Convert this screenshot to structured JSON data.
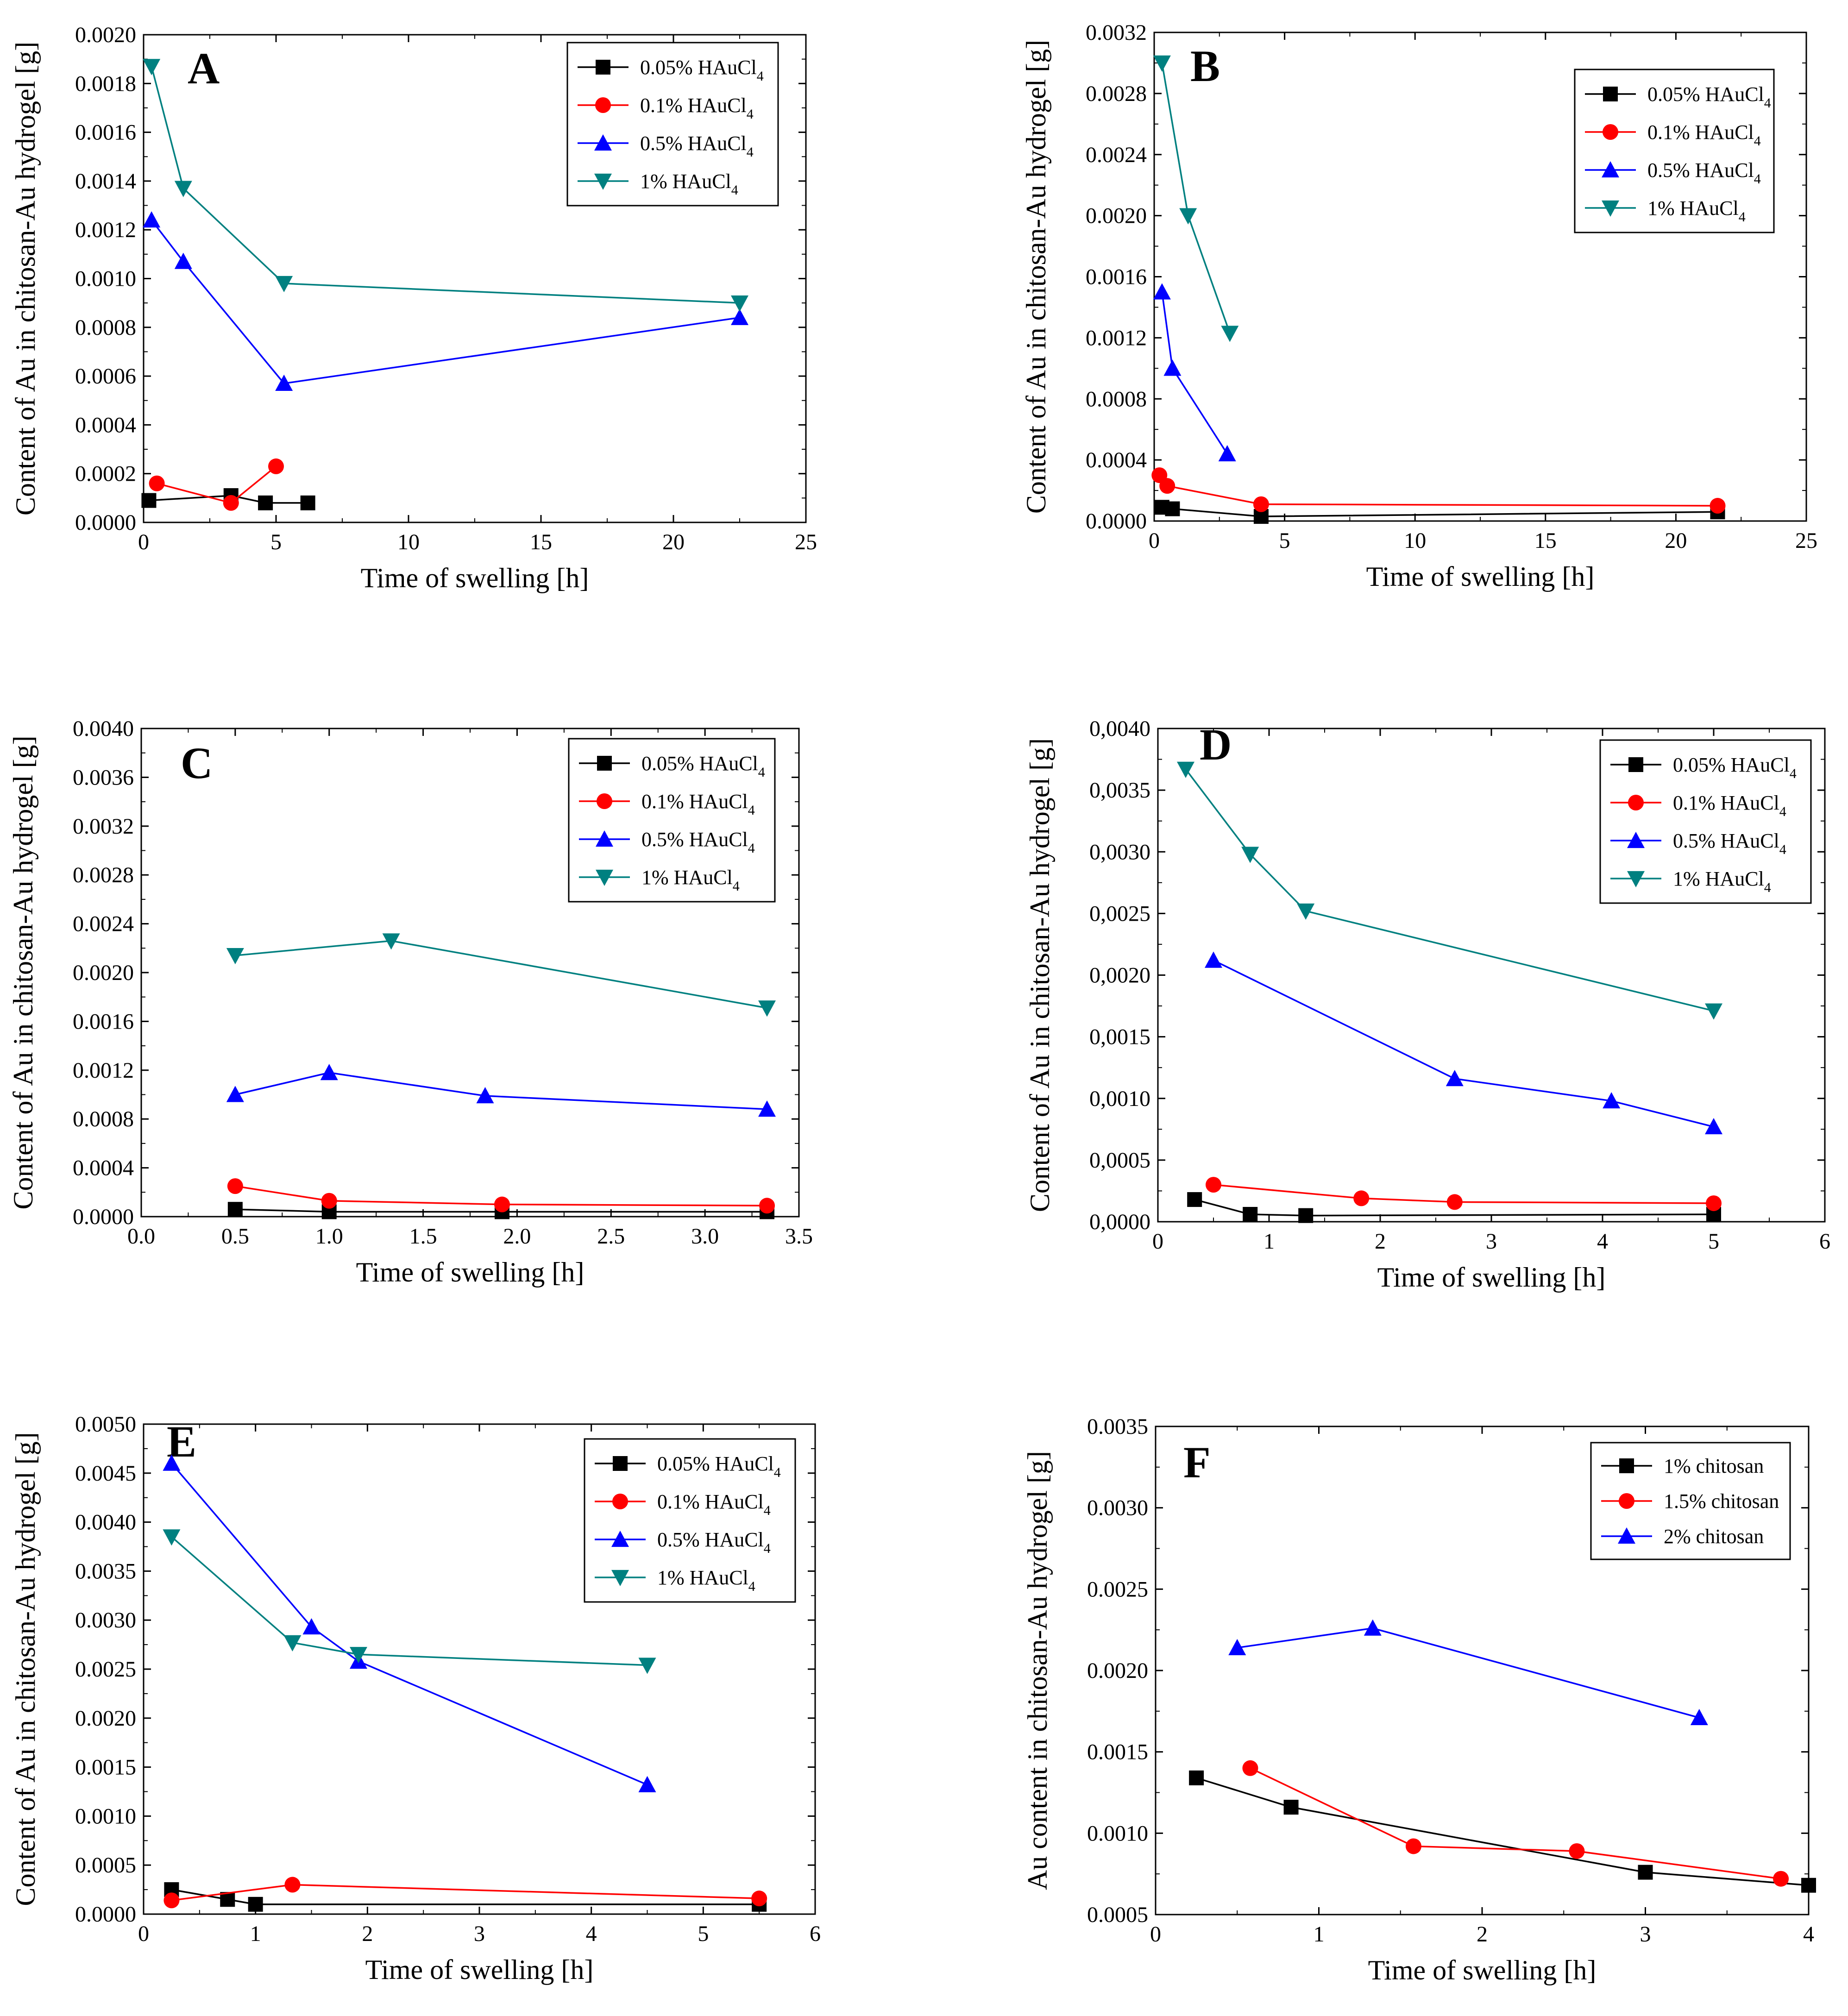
{
  "colors": {
    "black": "#000000",
    "red": "#ff0000",
    "blue": "#0000ff",
    "teal": "#008080"
  },
  "chart_data": [
    {
      "panel": "A",
      "type": "line",
      "xlabel": "Time of swelling [h]",
      "ylabel": "Content of Au in chitosan-Au hydrogel [g]",
      "xlim": [
        0,
        25
      ],
      "ylim": [
        0,
        0.002
      ],
      "xticks": [
        "0",
        "5",
        "10",
        "15",
        "20",
        "25"
      ],
      "yticks": [
        "0.0000",
        "0.0002",
        "0.0004",
        "0.0006",
        "0.0008",
        "0.0010",
        "0.0012",
        "0.0014",
        "0.0016",
        "0.0018",
        "0.0020"
      ],
      "legend_position": "top-right",
      "series": [
        {
          "name": "0.05% HAuCl",
          "sub": "4",
          "color": "#000000",
          "marker": "square",
          "x": [
            0.2,
            3.3,
            4.6,
            6.2
          ],
          "y": [
            9e-05,
            0.00011,
            8e-05,
            8e-05
          ]
        },
        {
          "name": "0.1% HAuCl",
          "sub": "4",
          "color": "#ff0000",
          "marker": "circle",
          "x": [
            0.5,
            3.3,
            5.0
          ],
          "y": [
            0.00016,
            8e-05,
            0.00023
          ]
        },
        {
          "name": "0.5% HAuCl",
          "sub": "4",
          "color": "#0000ff",
          "marker": "triangle-up",
          "x": [
            0.3,
            1.5,
            5.3,
            22.5
          ],
          "y": [
            0.00124,
            0.00107,
            0.00057,
            0.00084
          ]
        },
        {
          "name": "1% HAuCl",
          "sub": "4",
          "color": "#008080",
          "marker": "triangle-down",
          "x": [
            0.3,
            1.5,
            5.3,
            22.5
          ],
          "y": [
            0.00187,
            0.00137,
            0.00098,
            0.0009
          ]
        }
      ]
    },
    {
      "panel": "B",
      "type": "line",
      "xlabel": "Time of swelling [h]",
      "ylabel": "Content of Au in chitosan-Au hydrogel [g]",
      "xlim": [
        0,
        25
      ],
      "ylim": [
        0,
        0.0032
      ],
      "xticks": [
        "0",
        "5",
        "10",
        "15",
        "20",
        "25"
      ],
      "yticks": [
        "0.0000",
        "0.0004",
        "0.0008",
        "0.0012",
        "0.0016",
        "0.0020",
        "0.0024",
        "0.0028",
        "0.0032"
      ],
      "legend_position": "top-right",
      "series": [
        {
          "name": "0.05% HAuCl",
          "sub": "4",
          "color": "#000000",
          "marker": "square",
          "x": [
            0.3,
            0.7,
            4.1,
            21.6
          ],
          "y": [
            9e-05,
            8e-05,
            3e-05,
            6e-05
          ]
        },
        {
          "name": "0.1% HAuCl",
          "sub": "4",
          "color": "#ff0000",
          "marker": "circle",
          "x": [
            0.2,
            0.5,
            4.1,
            21.6
          ],
          "y": [
            0.0003,
            0.00023,
            0.00011,
            0.0001
          ]
        },
        {
          "name": "0.5% HAuCl",
          "sub": "4",
          "color": "#0000ff",
          "marker": "triangle-up",
          "x": [
            0.3,
            0.7,
            2.8
          ],
          "y": [
            0.0015,
            0.001,
            0.00044
          ]
        },
        {
          "name": "1% HAuCl",
          "sub": "4",
          "color": "#008080",
          "marker": "triangle-down",
          "x": [
            0.3,
            1.3,
            2.9
          ],
          "y": [
            0.003,
            0.002,
            0.00123
          ]
        }
      ]
    },
    {
      "panel": "C",
      "type": "line",
      "xlabel": "Time of swelling [h]",
      "ylabel": "Content of Au in chitosan-Au hydrogel [g]",
      "xlim": [
        0,
        3.5
      ],
      "ylim": [
        0,
        0.004
      ],
      "xticks": [
        "0.0",
        "0.5",
        "1.0",
        "1.5",
        "2.0",
        "2.5",
        "3.0",
        "3.5"
      ],
      "yticks": [
        "0.0000",
        "0.0004",
        "0.0008",
        "0.0012",
        "0.0016",
        "0.0020",
        "0.0024",
        "0.0028",
        "0.0032",
        "0.0036",
        "0.0040"
      ],
      "legend_position": "top-right",
      "series": [
        {
          "name": "0.05% HAuCl",
          "sub": "4",
          "color": "#000000",
          "marker": "square",
          "x": [
            0.5,
            1.0,
            1.92,
            3.33
          ],
          "y": [
            6e-05,
            4e-05,
            4e-05,
            4e-05
          ]
        },
        {
          "name": "0.1% HAuCl",
          "sub": "4",
          "color": "#ff0000",
          "marker": "circle",
          "x": [
            0.5,
            1.0,
            1.92,
            3.33
          ],
          "y": [
            0.00025,
            0.00013,
            0.0001,
            9e-05
          ]
        },
        {
          "name": "0.5% HAuCl",
          "sub": "4",
          "color": "#0000ff",
          "marker": "triangle-up",
          "x": [
            0.5,
            1.0,
            1.83,
            3.33
          ],
          "y": [
            0.001,
            0.00118,
            0.00099,
            0.00088
          ]
        },
        {
          "name": "1% HAuCl",
          "sub": "4",
          "color": "#008080",
          "marker": "triangle-down",
          "x": [
            0.5,
            1.33,
            3.33
          ],
          "y": [
            0.00214,
            0.00226,
            0.00171
          ]
        }
      ]
    },
    {
      "panel": "D",
      "type": "line",
      "xlabel": "Time of swelling [h]",
      "ylabel": "Content of Au in chitosan-Au hydrogel [g]",
      "xlim": [
        0,
        6
      ],
      "ylim": [
        0,
        0.004
      ],
      "xticks": [
        "0",
        "1",
        "2",
        "3",
        "4",
        "5",
        "6"
      ],
      "yticks": [
        "0,0000",
        "0,0005",
        "0,0010",
        "0,0015",
        "0,0020",
        "0,0025",
        "0,0030",
        "0,0035",
        "0,0040"
      ],
      "legend_position": "top-right",
      "series": [
        {
          "name": "0.05% HAuCl",
          "sub": "4",
          "color": "#000000",
          "marker": "square",
          "x": [
            0.33,
            0.83,
            1.33,
            5.0
          ],
          "y": [
            0.00018,
            6e-05,
            5e-05,
            6e-05
          ]
        },
        {
          "name": "0.1% HAuCl",
          "sub": "4",
          "color": "#ff0000",
          "marker": "circle",
          "x": [
            0.5,
            1.83,
            2.67,
            5.0
          ],
          "y": [
            0.0003,
            0.00019,
            0.00016,
            0.00015
          ]
        },
        {
          "name": "0.5% HAuCl",
          "sub": "4",
          "color": "#0000ff",
          "marker": "triangle-up",
          "x": [
            0.5,
            2.67,
            4.08,
            5.0
          ],
          "y": [
            0.00212,
            0.00116,
            0.00098,
            0.00077
          ]
        },
        {
          "name": "1% HAuCl",
          "sub": "4",
          "color": "#008080",
          "marker": "triangle-down",
          "x": [
            0.25,
            0.83,
            1.33,
            5.0
          ],
          "y": [
            0.00367,
            0.00298,
            0.00252,
            0.00171
          ]
        }
      ]
    },
    {
      "panel": "E",
      "type": "line",
      "xlabel": "Time of swelling [h]",
      "ylabel": "Content of Au in chitosan-Au hydrogel [g]",
      "xlim": [
        0,
        6
      ],
      "ylim": [
        0,
        0.005
      ],
      "xticks": [
        "0",
        "1",
        "2",
        "3",
        "4",
        "5",
        "6"
      ],
      "yticks": [
        "0.0000",
        "0.0005",
        "0.0010",
        "0.0015",
        "0.0020",
        "0.0025",
        "0.0030",
        "0.0035",
        "0.0040",
        "0.0045",
        "0.0050"
      ],
      "legend_position": "top-right",
      "series": [
        {
          "name": "0.05% HAuCl",
          "sub": "4",
          "color": "#000000",
          "marker": "square",
          "x": [
            0.25,
            0.75,
            1.0,
            5.5
          ],
          "y": [
            0.00025,
            0.00015,
            0.0001,
            0.0001
          ]
        },
        {
          "name": "0.1% HAuCl",
          "sub": "4",
          "color": "#ff0000",
          "marker": "circle",
          "x": [
            0.25,
            1.33,
            5.5
          ],
          "y": [
            0.00014,
            0.0003,
            0.00016
          ]
        },
        {
          "name": "0.5% HAuCl",
          "sub": "4",
          "color": "#0000ff",
          "marker": "triangle-up",
          "x": [
            0.25,
            1.5,
            1.92,
            4.5
          ],
          "y": [
            0.0046,
            0.00293,
            0.00258,
            0.00132
          ]
        },
        {
          "name": "1% HAuCl",
          "sub": "4",
          "color": "#008080",
          "marker": "triangle-down",
          "x": [
            0.25,
            1.33,
            1.92,
            4.5
          ],
          "y": [
            0.00385,
            0.00277,
            0.00265,
            0.00254
          ]
        }
      ]
    },
    {
      "panel": "F",
      "type": "line",
      "xlabel": "Time of swelling [h]",
      "ylabel": "Au content in chitosan-Au hydrogel [g]",
      "xlim": [
        0,
        4
      ],
      "ylim": [
        0.0005,
        0.0035
      ],
      "xticks": [
        "0",
        "1",
        "2",
        "3",
        "4"
      ],
      "yticks": [
        "0.0005",
        "0.0010",
        "0.0015",
        "0.0020",
        "0.0025",
        "0.0030",
        "0.0035"
      ],
      "legend_position": "top-right",
      "series": [
        {
          "name": "1% chitosan",
          "sub": "",
          "color": "#000000",
          "marker": "square",
          "x": [
            0.25,
            0.83,
            3.0,
            4.0
          ],
          "y": [
            0.00134,
            0.00116,
            0.00076,
            0.00068
          ]
        },
        {
          "name": "1.5% chitosan",
          "sub": "",
          "color": "#ff0000",
          "marker": "circle",
          "x": [
            0.58,
            1.58,
            2.58,
            3.83
          ],
          "y": [
            0.0014,
            0.00092,
            0.00089,
            0.00072
          ]
        },
        {
          "name": "2% chitosan",
          "sub": "",
          "color": "#0000ff",
          "marker": "triangle-up",
          "x": [
            0.5,
            1.33,
            3.33
          ],
          "y": [
            0.00214,
            0.00226,
            0.00171
          ]
        }
      ]
    }
  ]
}
